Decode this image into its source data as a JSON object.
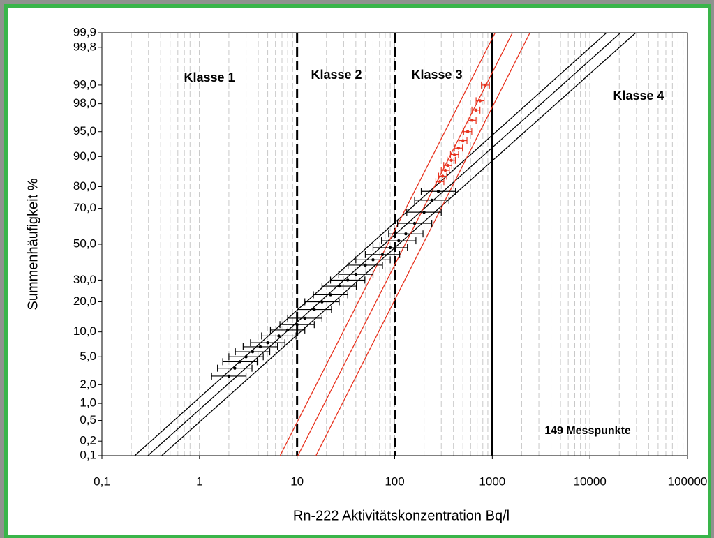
{
  "chart_data": {
    "type": "probability-scatter",
    "x_label": "Rn-222 Aktivitätskonzentration   Bq/l",
    "y_label": "Summenhäufigkeit  %",
    "x_log": true,
    "xlim": [
      0.1,
      100000
    ],
    "xticks": [
      {
        "value": 0.1,
        "label": "0,1"
      },
      1,
      10,
      100,
      1000,
      10000,
      100000
    ],
    "ylim": [
      0.1,
      99.9
    ],
    "yticks": [
      {
        "value": 0.1,
        "label": "0,1"
      },
      {
        "value": 0.2,
        "label": "0,2"
      },
      {
        "value": 0.5,
        "label": "0,5"
      },
      {
        "value": 1,
        "label": "1,0"
      },
      {
        "value": 2,
        "label": "2,0"
      },
      {
        "value": 5,
        "label": "5,0"
      },
      {
        "value": 10,
        "label": "10,0"
      },
      {
        "value": 20,
        "label": "20,0"
      },
      {
        "value": 30,
        "label": "30,0"
      },
      {
        "value": 50,
        "label": "50,0"
      },
      {
        "value": 70,
        "label": "70,0"
      },
      {
        "value": 80,
        "label": "80,0"
      },
      {
        "value": 90,
        "label": "90,0"
      },
      {
        "value": 95,
        "label": "95,0"
      },
      {
        "value": 98,
        "label": "98,0"
      },
      {
        "value": 99,
        "label": "99,0"
      },
      {
        "value": 99.8,
        "label": "99,8"
      },
      {
        "value": 99.9,
        "label": "99,9"
      }
    ],
    "grid": true,
    "class_bounds": [
      {
        "value": 10,
        "style": "dashed"
      },
      {
        "value": 100,
        "style": "dashed"
      },
      {
        "value": 1000,
        "style": "solid"
      }
    ],
    "annotations": [
      "Klasse 1",
      "Klasse 2",
      "Klasse 3",
      "Klasse 4",
      "149 Messpunkte"
    ],
    "series": [
      {
        "color": "#000000",
        "x": [
          2.0,
          2.3,
          2.6,
          3.0,
          3.5,
          4.2,
          5.0,
          6.5,
          8,
          10,
          12,
          15,
          18,
          22,
          27,
          33,
          40,
          50,
          60,
          75,
          90,
          110,
          130,
          160,
          200,
          240,
          280
        ],
        "values": [
          2.7,
          3.5,
          4.3,
          5.0,
          5.8,
          6.7,
          7.5,
          9,
          10.5,
          12,
          14,
          17,
          20,
          23,
          27,
          30,
          33,
          38,
          41,
          44,
          48,
          52,
          56,
          62,
          68,
          74,
          78
        ],
        "x_low": [
          1.33,
          1.53,
          1.73,
          2.0,
          2.33,
          2.8,
          3.33,
          4.33,
          5.33,
          6.67,
          8,
          10,
          12,
          14.7,
          18,
          22,
          26.7,
          33.3,
          40,
          50,
          60,
          73.3,
          86.7,
          107,
          133,
          160,
          187
        ],
        "x_high": [
          3,
          3.45,
          3.9,
          4.5,
          5.25,
          6.3,
          7.5,
          9.75,
          12,
          15,
          18,
          22.5,
          27,
          33,
          40.5,
          49.5,
          60,
          75,
          90,
          112.5,
          135,
          165,
          195,
          240,
          300,
          360,
          420
        ]
      },
      {
        "color": "#e8321e",
        "x": [
          290,
          310,
          330,
          350,
          380,
          410,
          450,
          500,
          560,
          620,
          680,
          750,
          850
        ],
        "values": [
          82,
          84,
          86,
          87.5,
          89,
          90.5,
          92,
          93.5,
          95,
          96.5,
          97.5,
          98.2,
          99.0
        ],
        "x_low": [
          264,
          282,
          300,
          318,
          345,
          373,
          409,
          455,
          509,
          564,
          618,
          682,
          773
        ],
        "x_high": [
          319,
          341,
          363,
          385,
          418,
          451,
          495,
          550,
          616,
          682,
          748,
          825,
          935
        ]
      }
    ],
    "fit_lines": [
      {
        "color": "#000000",
        "x": [
          0.217,
          14800
        ],
        "values": [
          0.1,
          99.9
        ]
      },
      {
        "color": "#000000",
        "x": [
          0.296,
          20600
        ],
        "values": [
          0.1,
          99.9
        ]
      },
      {
        "color": "#000000",
        "x": [
          0.41,
          29500
        ],
        "values": [
          0.1,
          99.9
        ]
      },
      {
        "color": "#e8321e",
        "x": [
          6.7,
          1070
        ],
        "values": [
          0.1,
          99.9
        ]
      },
      {
        "color": "#e8321e",
        "x": [
          10.2,
          1610
        ],
        "values": [
          0.1,
          99.9
        ]
      },
      {
        "color": "#e8321e",
        "x": [
          15.6,
          2430
        ],
        "values": [
          0.1,
          99.9
        ]
      }
    ]
  }
}
